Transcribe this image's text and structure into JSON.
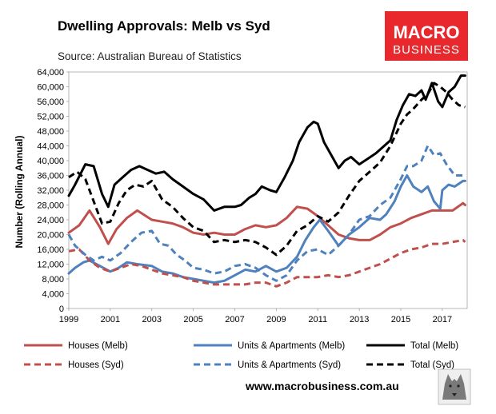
{
  "chart_data": {
    "type": "line",
    "title": "Dwelling Approvals: Melb vs Syd",
    "subtitle": "Source: Australian Bureau of Statistics",
    "xlabel": "",
    "ylabel": "Number (Rolling Annual)",
    "xlim": [
      1999,
      2018.2
    ],
    "ylim": [
      0,
      64000
    ],
    "yticks": [
      0,
      4000,
      8000,
      12000,
      16000,
      20000,
      24000,
      28000,
      32000,
      36000,
      40000,
      44000,
      48000,
      52000,
      56000,
      60000,
      64000
    ],
    "ytick_labels": [
      "0",
      "4,000",
      "8,000",
      "12,000",
      "16,000",
      "20,000",
      "24,000",
      "28,000",
      "32,000",
      "36,000",
      "40,000",
      "44,000",
      "48,000",
      "52,000",
      "56,000",
      "60,000",
      "64,000"
    ],
    "xticks": [
      1999,
      2001,
      2003,
      2005,
      2007,
      2009,
      2011,
      2013,
      2015,
      2017
    ],
    "xtick_labels": [
      "1999",
      "2001",
      "2003",
      "2005",
      "2007",
      "2009",
      "2011",
      "2013",
      "2015",
      "2017"
    ],
    "legend_position": "bottom",
    "series": [
      {
        "name": "Houses (Melb)",
        "color": "#c0504d",
        "dash": "solid",
        "x": [
          1999,
          1999.5,
          2000,
          2000.5,
          2000.9,
          2001.3,
          2001.8,
          2002.3,
          2003,
          2003.5,
          2004,
          2004.5,
          2005,
          2005.5,
          2006,
          2006.5,
          2007,
          2007.5,
          2008,
          2008.5,
          2009,
          2009.5,
          2010,
          2010.5,
          2011,
          2011.5,
          2012,
          2012.5,
          2013,
          2013.5,
          2014,
          2014.5,
          2015,
          2015.5,
          2016,
          2016.5,
          2017,
          2017.5,
          2018,
          2018.1
        ],
        "y": [
          20500,
          22500,
          26500,
          22000,
          17500,
          21500,
          24500,
          26500,
          24000,
          23500,
          23000,
          22000,
          20500,
          20000,
          20500,
          20000,
          20000,
          21500,
          22500,
          22000,
          22500,
          24500,
          27500,
          27000,
          25000,
          22500,
          20000,
          19000,
          18500,
          18500,
          20000,
          22000,
          23000,
          24500,
          25500,
          26500,
          26500,
          26500,
          28500,
          28000
        ]
      },
      {
        "name": "Units & Apartments (Melb)",
        "color": "#4f81bd",
        "dash": "solid",
        "x": [
          1999,
          1999.3,
          1999.7,
          2000,
          2000.5,
          2001,
          2001.4,
          2001.8,
          2002.3,
          2003,
          2003.5,
          2004,
          2004.5,
          2005,
          2005.5,
          2006,
          2006.5,
          2007,
          2007.5,
          2008,
          2008.5,
          2009,
          2009.5,
          2010,
          2010.4,
          2010.8,
          2011.1,
          2011.5,
          2012,
          2012.5,
          2013,
          2013.5,
          2014,
          2014.3,
          2014.7,
          2015,
          2015.3,
          2015.6,
          2016,
          2016.3,
          2016.6,
          2016.9,
          2017,
          2017.3,
          2017.6,
          2018,
          2018.1
        ],
        "y": [
          9500,
          11000,
          12500,
          13000,
          11500,
          10000,
          11000,
          12500,
          12000,
          11500,
          10000,
          9500,
          8500,
          8000,
          7500,
          7000,
          7500,
          9000,
          10500,
          10000,
          11500,
          10000,
          11000,
          14000,
          18500,
          22000,
          24000,
          21000,
          17000,
          20000,
          22000,
          24500,
          24000,
          25500,
          29000,
          33000,
          36000,
          33000,
          31500,
          33000,
          29000,
          27000,
          32000,
          33500,
          33000,
          34500,
          34500
        ]
      },
      {
        "name": "Total (Melb)",
        "color": "#000000",
        "dash": "solid",
        "x": [
          1999,
          1999.3,
          1999.8,
          2000.2,
          2000.6,
          2000.9,
          2001.2,
          2001.6,
          2002,
          2002.4,
          2002.8,
          2003.2,
          2003.6,
          2004,
          2004.5,
          2005,
          2005.5,
          2006,
          2006.5,
          2007,
          2007.3,
          2007.7,
          2008,
          2008.3,
          2008.7,
          2009,
          2009.4,
          2009.8,
          2010.1,
          2010.5,
          2010.8,
          2011,
          2011.3,
          2011.7,
          2012,
          2012.3,
          2012.6,
          2013,
          2013.4,
          2013.8,
          2014.2,
          2014.5,
          2014.8,
          2015.1,
          2015.4,
          2015.7,
          2016,
          2016.2,
          2016.5,
          2016.8,
          2017,
          2017.3,
          2017.6,
          2017.9,
          2018.1
        ],
        "y": [
          30500,
          33500,
          39000,
          38500,
          31000,
          27500,
          33500,
          35500,
          37500,
          38500,
          37500,
          36500,
          37000,
          35000,
          33000,
          31000,
          29500,
          26500,
          27500,
          27500,
          28000,
          30000,
          31000,
          33000,
          32000,
          31500,
          35500,
          40000,
          45000,
          49000,
          50500,
          50000,
          45000,
          41000,
          38000,
          40000,
          41000,
          39000,
          40500,
          42000,
          44000,
          45500,
          51000,
          55000,
          58000,
          57500,
          59000,
          56500,
          61000,
          56000,
          54500,
          58500,
          60000,
          63000,
          63000
        ]
      },
      {
        "name": "Houses (Syd)",
        "color": "#c0504d",
        "dash": "dashed",
        "x": [
          1999,
          1999.5,
          2000,
          2000.5,
          2001,
          2001.5,
          2002,
          2002.5,
          2003,
          2003.5,
          2004,
          2004.5,
          2005,
          2005.5,
          2006,
          2006.5,
          2007,
          2007.5,
          2008,
          2008.5,
          2009,
          2009.5,
          2010,
          2010.5,
          2011,
          2011.5,
          2012,
          2012.5,
          2013,
          2013.5,
          2014,
          2014.5,
          2015,
          2015.5,
          2016,
          2016.5,
          2017,
          2017.5,
          2018,
          2018.1
        ],
        "y": [
          15500,
          16000,
          13000,
          11000,
          10000,
          11000,
          12000,
          11500,
          10500,
          9500,
          9000,
          8500,
          7500,
          7000,
          6500,
          6500,
          6500,
          6500,
          7000,
          7000,
          6000,
          7000,
          8500,
          8500,
          8500,
          9000,
          8500,
          9000,
          10000,
          11000,
          12000,
          13500,
          15000,
          16000,
          16500,
          17500,
          17500,
          18000,
          18500,
          18000
        ]
      },
      {
        "name": "Units & Apartments (Syd)",
        "color": "#4f81bd",
        "dash": "dashed",
        "x": [
          1999,
          1999.3,
          1999.8,
          2000.2,
          2000.6,
          2001,
          2001.5,
          2002,
          2002.5,
          2003,
          2003.4,
          2003.8,
          2004.2,
          2004.6,
          2005,
          2005.5,
          2006,
          2006.5,
          2007,
          2007.5,
          2008,
          2008.5,
          2009,
          2009.5,
          2010,
          2010.5,
          2011,
          2011.5,
          2012,
          2012.5,
          2013,
          2013.5,
          2014,
          2014.5,
          2015,
          2015.3,
          2015.6,
          2016,
          2016.3,
          2016.6,
          2016.9,
          2017.2,
          2017.6,
          2018,
          2018.1
        ],
        "y": [
          20000,
          17000,
          14500,
          13000,
          14000,
          13000,
          15000,
          18000,
          20500,
          21000,
          17500,
          17000,
          14500,
          13000,
          11000,
          10500,
          9500,
          10000,
          11500,
          12000,
          11000,
          9000,
          7500,
          9000,
          13000,
          15500,
          16000,
          14500,
          17000,
          20000,
          24000,
          25000,
          28000,
          30000,
          35000,
          38500,
          38500,
          40000,
          44000,
          41500,
          42000,
          39000,
          36000,
          36000,
          35500
        ]
      },
      {
        "name": "Total (Syd)",
        "color": "#000000",
        "dash": "dashed",
        "x": [
          1999,
          1999.4,
          1999.8,
          2000.2,
          2000.6,
          2001,
          2001.4,
          2001.8,
          2002.2,
          2002.6,
          2003,
          2003.5,
          2004,
          2004.5,
          2005,
          2005.5,
          2006,
          2006.5,
          2007,
          2007.5,
          2008,
          2008.5,
          2009,
          2009.5,
          2010,
          2010.5,
          2011,
          2011.5,
          2012,
          2012.5,
          2013,
          2013.5,
          2014,
          2014.5,
          2015,
          2015.3,
          2015.6,
          2016,
          2016.3,
          2016.6,
          2016.9,
          2017.2,
          2017.5,
          2017.8,
          2018.1
        ],
        "y": [
          35500,
          37000,
          35000,
          29000,
          23000,
          23500,
          28500,
          32000,
          33500,
          33000,
          34500,
          29500,
          27500,
          24500,
          22000,
          21000,
          18000,
          18500,
          18000,
          18500,
          18000,
          16500,
          14500,
          17000,
          21000,
          22500,
          25000,
          23500,
          26000,
          30500,
          34500,
          37000,
          39500,
          44000,
          50000,
          52500,
          54000,
          56500,
          58000,
          61000,
          60000,
          58500,
          56500,
          55000,
          54500
        ]
      }
    ]
  },
  "branding": {
    "logo_line1": "MACRO",
    "logo_line2": "BUSINESS",
    "logo_color": "#e8282c",
    "website": "www.macrobusiness.com.au"
  }
}
